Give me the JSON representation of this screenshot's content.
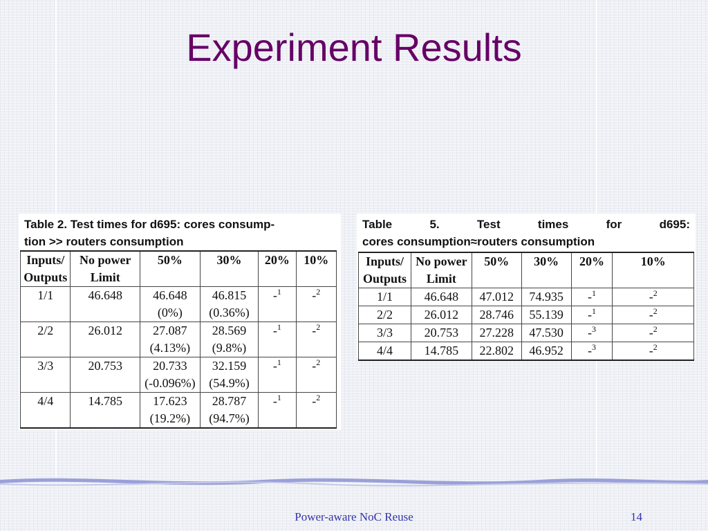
{
  "slide": {
    "title": "Experiment Results",
    "footer_text": "Power-aware NoC Reuse",
    "page_number": "14"
  },
  "table2": {
    "caption": "Table 2. Test times for d695: cores consump-tion >> routers consumption",
    "caption_line1": "Table 2. Test times for d695: cores consump-",
    "caption_line2": "tion >> routers consumption",
    "headers": {
      "io_line1": "Inputs/",
      "io_line2": "Outputs",
      "np_line1": "No power",
      "np_line2": "Limit",
      "p50": "50%",
      "p30": "30%",
      "p20": "20%",
      "p10": "10%"
    },
    "rows": [
      {
        "io": "1/1",
        "no_power": "46.648",
        "p50": "46.648",
        "p50_pct": "(0%)",
        "p30": "46.815",
        "p30_pct": "(0.36%)",
        "p20": "-",
        "p20_sup": "1",
        "p10": "-",
        "p10_sup": "2"
      },
      {
        "io": "2/2",
        "no_power": "26.012",
        "p50": "27.087",
        "p50_pct": "(4.13%)",
        "p30": "28.569",
        "p30_pct": "(9.8%)",
        "p20": "-",
        "p20_sup": "1",
        "p10": "-",
        "p10_sup": "2"
      },
      {
        "io": "3/3",
        "no_power": "20.753",
        "p50": "20.733",
        "p50_pct": "(-0.096%)",
        "p30": "32.159",
        "p30_pct": "(54.9%)",
        "p20": "-",
        "p20_sup": "1",
        "p10": "-",
        "p10_sup": "2"
      },
      {
        "io": "4/4",
        "no_power": "14.785",
        "p50": "17.623",
        "p50_pct": "(19.2%)",
        "p30": "28.787",
        "p30_pct": "(94.7%)",
        "p20": "-",
        "p20_sup": "1",
        "p10": "-",
        "p10_sup": "2"
      }
    ]
  },
  "table5": {
    "caption": "Table 5. Test times for d695: cores consumption≈routers consumption",
    "caption_line1": "Table 5. Test times for d695:",
    "caption_line2": "cores consumption≈routers consumption",
    "headers": {
      "io_line1": "Inputs/",
      "io_line2": "Outputs",
      "np_line1": "No power",
      "np_line2": "Limit",
      "p50": "50%",
      "p30": "30%",
      "p20": "20%",
      "p10": "10%"
    },
    "rows": [
      {
        "io": "1/1",
        "no_power": "46.648",
        "p50": "47.012",
        "p30": "74.935",
        "p20": "-",
        "p20_sup": "1",
        "p10": "-",
        "p10_sup": "2"
      },
      {
        "io": "2/2",
        "no_power": "26.012",
        "p50": "28.746",
        "p30": "55.139",
        "p20": "-",
        "p20_sup": "1",
        "p10": "-",
        "p10_sup": "2"
      },
      {
        "io": "3/3",
        "no_power": "20.753",
        "p50": "27.228",
        "p30": "47.530",
        "p20": "-",
        "p20_sup": "3",
        "p10": "-",
        "p10_sup": "2"
      },
      {
        "io": "4/4",
        "no_power": "14.785",
        "p50": "22.802",
        "p30": "46.952",
        "p20": "-",
        "p20_sup": "3",
        "p10": "-",
        "p10_sup": "2"
      }
    ]
  },
  "colors": {
    "title": "#660066",
    "footer": "#3333aa",
    "wave": "#9aa0d8"
  }
}
